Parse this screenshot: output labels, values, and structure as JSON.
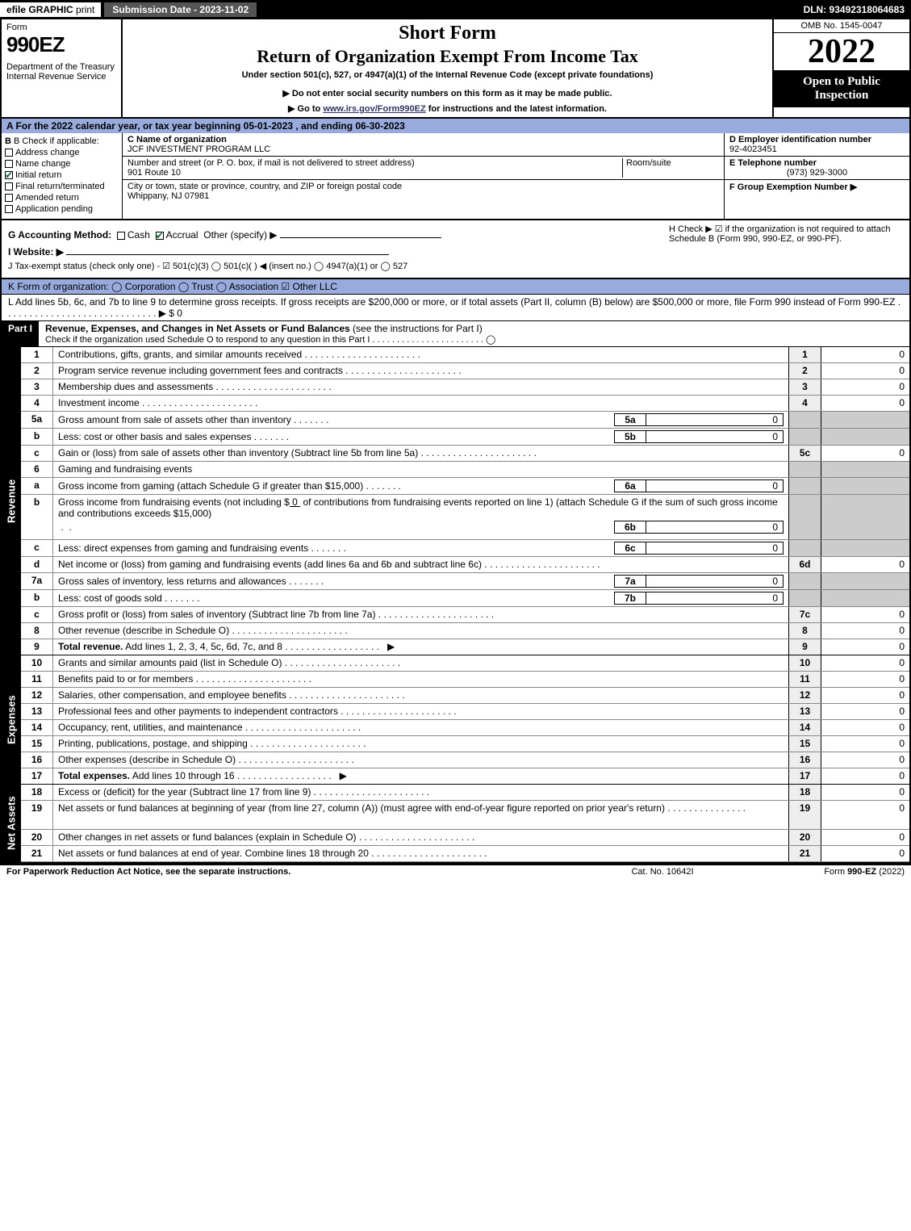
{
  "topbar": {
    "efile": "efile",
    "graphic": "GRAPHIC",
    "print": "print",
    "submission_date_label": "Submission Date - 2023-11-02",
    "dln": "DLN: 93492318064683"
  },
  "header": {
    "form_label": "Form",
    "form_number": "990EZ",
    "dept": "Department of the Treasury\nInternal Revenue Service",
    "short_form": "Short Form",
    "return_title": "Return of Organization Exempt From Income Tax",
    "under_section": "Under section 501(c), 527, or 4947(a)(1) of the Internal Revenue Code (except private foundations)",
    "do_not_enter": "▶ Do not enter social security numbers on this form as it may be made public.",
    "goto_prefix": "▶ Go to ",
    "goto_link": "www.irs.gov/Form990EZ",
    "goto_suffix": " for instructions and the latest information.",
    "omb": "OMB No. 1545-0047",
    "year": "2022",
    "open_to_public": "Open to Public Inspection"
  },
  "line_a": "A  For the 2022 calendar year, or tax year beginning 05-01-2023 , and ending 06-30-2023",
  "section_b": {
    "label": "B  Check if applicable:",
    "options": [
      {
        "label": "Address change",
        "checked": false
      },
      {
        "label": "Name change",
        "checked": false
      },
      {
        "label": "Initial return",
        "checked": true
      },
      {
        "label": "Final return/terminated",
        "checked": false
      },
      {
        "label": "Amended return",
        "checked": false
      },
      {
        "label": "Application pending",
        "checked": false
      }
    ]
  },
  "section_c": {
    "name_label": "C Name of organization",
    "name": "JCF INVESTMENT PROGRAM LLC",
    "street_label": "Number and street (or P. O. box, if mail is not delivered to street address)",
    "street": "901 Route 10",
    "room_label": "Room/suite",
    "city_label": "City or town, state or province, country, and ZIP or foreign postal code",
    "city": "Whippany, NJ  07981"
  },
  "section_d": {
    "label": "D Employer identification number",
    "value": "92-4023451"
  },
  "section_e": {
    "label": "E Telephone number",
    "value": "(973) 929-3000"
  },
  "section_f": {
    "label": "F Group Exemption Number  ▶",
    "value": ""
  },
  "section_g": {
    "label": "G Accounting Method:",
    "cash": "Cash",
    "accrual": "Accrual",
    "other": "Other (specify) ▶"
  },
  "section_h": "H  Check ▶ ☑ if the organization is not required to attach Schedule B (Form 990, 990-EZ, or 990-PF).",
  "section_i": {
    "label": "I Website: ▶"
  },
  "section_j": "J Tax-exempt status (check only one) - ☑ 501(c)(3)  ◯ 501(c)( ) ◀ (insert no.)  ◯ 4947(a)(1) or  ◯ 527",
  "section_k": "K Form of organization:  ◯ Corporation  ◯ Trust  ◯ Association  ☑ Other LLC",
  "section_l": "L Add lines 5b, 6c, and 7b to line 9 to determine gross receipts. If gross receipts are $200,000 or more, or if total assets (Part II, column (B) below) are $500,000 or more, file Form 990 instead of Form 990-EZ  .  .  .  .  .  .  .  .  .  .  .  .  .  .  .  .  .  .  .  .  .  .  .  .  .  .  .  .  .  ▶ $ 0",
  "part1": {
    "header": "Part I",
    "title": "Revenue, Expenses, and Changes in Net Assets or Fund Balances",
    "title_sub": "(see the instructions for Part I)",
    "check_text": "Check if the organization used Schedule O to respond to any question in this Part I .  .  .  .  .  .  .  .  .  .  .  .  .  .  .  .  .  .  .  .  .  .  . ◯"
  },
  "sections": {
    "revenue_label": "Revenue",
    "expenses_label": "Expenses",
    "netassets_label": "Net Assets"
  },
  "lines": {
    "l1": {
      "num": "1",
      "desc": "Contributions, gifts, grants, and similar amounts received",
      "col": "1",
      "val": "0"
    },
    "l2": {
      "num": "2",
      "desc": "Program service revenue including government fees and contracts",
      "col": "2",
      "val": "0"
    },
    "l3": {
      "num": "3",
      "desc": "Membership dues and assessments",
      "col": "3",
      "val": "0"
    },
    "l4": {
      "num": "4",
      "desc": "Investment income",
      "col": "4",
      "val": "0"
    },
    "l5a": {
      "num": "5a",
      "desc": "Gross amount from sale of assets other than inventory",
      "sub": "5a",
      "subval": "0"
    },
    "l5b": {
      "num": "b",
      "desc": "Less: cost or other basis and sales expenses",
      "sub": "5b",
      "subval": "0"
    },
    "l5c": {
      "num": "c",
      "desc": "Gain or (loss) from sale of assets other than inventory (Subtract line 5b from line 5a)",
      "col": "5c",
      "val": "0"
    },
    "l6": {
      "num": "6",
      "desc": "Gaming and fundraising events"
    },
    "l6a": {
      "num": "a",
      "desc": "Gross income from gaming (attach Schedule G if greater than $15,000)",
      "sub": "6a",
      "subval": "0"
    },
    "l6b": {
      "num": "b",
      "desc1": "Gross income from fundraising events (not including $",
      "desc1_val": "0",
      "desc2": "of contributions from fundraising events reported on line 1) (attach Schedule G if the sum of such gross income and contributions exceeds $15,000)",
      "sub": "6b",
      "subval": "0"
    },
    "l6c": {
      "num": "c",
      "desc": "Less: direct expenses from gaming and fundraising events",
      "sub": "6c",
      "subval": "0"
    },
    "l6d": {
      "num": "d",
      "desc": "Net income or (loss) from gaming and fundraising events (add lines 6a and 6b and subtract line 6c)",
      "col": "6d",
      "val": "0"
    },
    "l7a": {
      "num": "7a",
      "desc": "Gross sales of inventory, less returns and allowances",
      "sub": "7a",
      "subval": "0"
    },
    "l7b": {
      "num": "b",
      "desc": "Less: cost of goods sold",
      "sub": "7b",
      "subval": "0"
    },
    "l7c": {
      "num": "c",
      "desc": "Gross profit or (loss) from sales of inventory (Subtract line 7b from line 7a)",
      "col": "7c",
      "val": "0"
    },
    "l8": {
      "num": "8",
      "desc": "Other revenue (describe in Schedule O)",
      "col": "8",
      "val": "0"
    },
    "l9": {
      "num": "9",
      "desc": "Total revenue. Add lines 1, 2, 3, 4, 5c, 6d, 7c, and 8",
      "arrow": "▶",
      "col": "9",
      "val": "0"
    },
    "l10": {
      "num": "10",
      "desc": "Grants and similar amounts paid (list in Schedule O)",
      "col": "10",
      "val": "0"
    },
    "l11": {
      "num": "11",
      "desc": "Benefits paid to or for members",
      "col": "11",
      "val": "0"
    },
    "l12": {
      "num": "12",
      "desc": "Salaries, other compensation, and employee benefits",
      "col": "12",
      "val": "0"
    },
    "l13": {
      "num": "13",
      "desc": "Professional fees and other payments to independent contractors",
      "col": "13",
      "val": "0"
    },
    "l14": {
      "num": "14",
      "desc": "Occupancy, rent, utilities, and maintenance",
      "col": "14",
      "val": "0"
    },
    "l15": {
      "num": "15",
      "desc": "Printing, publications, postage, and shipping",
      "col": "15",
      "val": "0"
    },
    "l16": {
      "num": "16",
      "desc": "Other expenses (describe in Schedule O)",
      "col": "16",
      "val": "0"
    },
    "l17": {
      "num": "17",
      "desc": "Total expenses. Add lines 10 through 16",
      "arrow": "▶",
      "col": "17",
      "val": "0"
    },
    "l18": {
      "num": "18",
      "desc": "Excess or (deficit) for the year (Subtract line 17 from line 9)",
      "col": "18",
      "val": "0"
    },
    "l19": {
      "num": "19",
      "desc": "Net assets or fund balances at beginning of year (from line 27, column (A)) (must agree with end-of-year figure reported on prior year's return)",
      "col": "19",
      "val": "0"
    },
    "l20": {
      "num": "20",
      "desc": "Other changes in net assets or fund balances (explain in Schedule O)",
      "col": "20",
      "val": "0"
    },
    "l21": {
      "num": "21",
      "desc": "Net assets or fund balances at end of year. Combine lines 18 through 20",
      "col": "21",
      "val": "0"
    }
  },
  "footer": {
    "left": "For Paperwork Reduction Act Notice, see the separate instructions.",
    "mid": "Cat. No. 10642I",
    "right": "Form 990-EZ (2022)"
  }
}
